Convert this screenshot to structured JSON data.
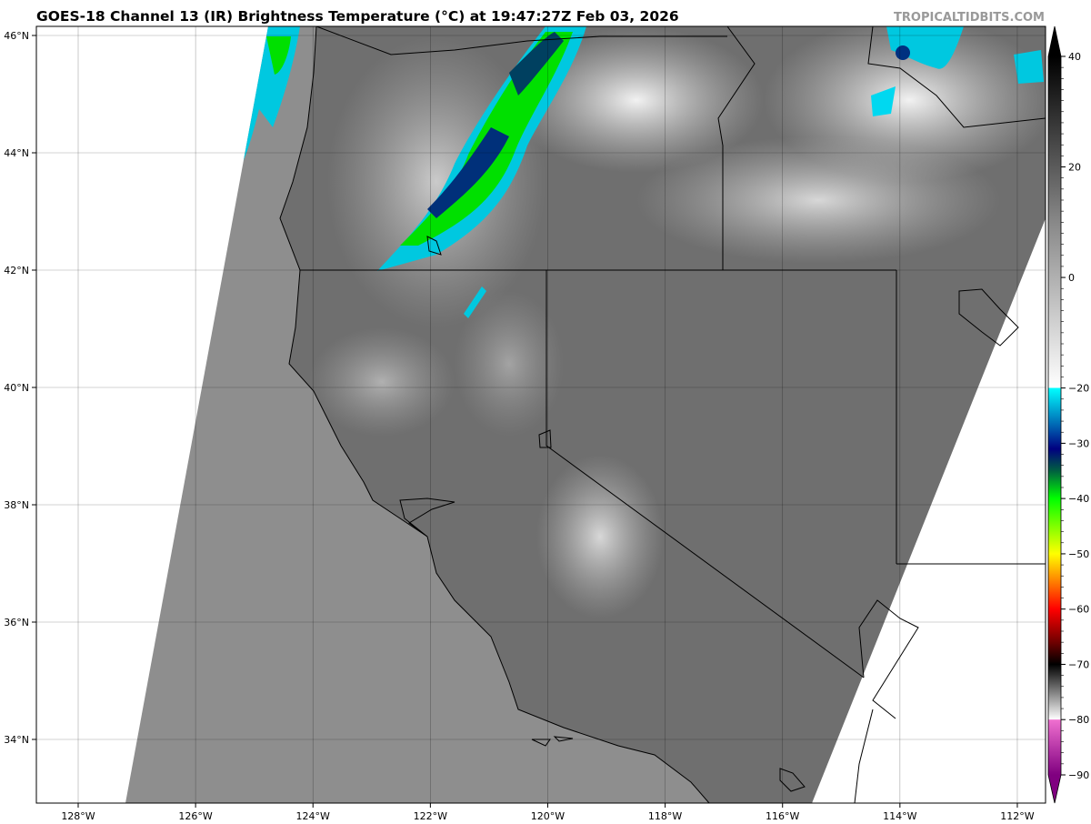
{
  "title": "GOES-18 Channel 13 (IR) Brightness Temperature (°C) at 19:47:27Z Feb 03, 2026",
  "brand": "TROPICALTIDBITS.COM",
  "map": {
    "projection": "equirectangular",
    "lon_range": [
      -128.7,
      -111.5
    ],
    "lat_range": [
      32.9,
      46.2
    ],
    "grid": true,
    "lon_ticks": [
      "128°W",
      "126°W",
      "124°W",
      "122°W",
      "120°W",
      "118°W",
      "116°W",
      "114°W",
      "112°W"
    ],
    "lon_values": [
      -128,
      -126,
      -124,
      -122,
      -120,
      -118,
      -116,
      -114,
      -112
    ],
    "lat_ticks": [
      "34°N",
      "36°N",
      "38°N",
      "40°N",
      "42°N",
      "44°N",
      "46°N"
    ],
    "lat_values": [
      34,
      36,
      38,
      40,
      42,
      44,
      46
    ],
    "colors": {
      "ocean": "#8e8e8e",
      "land": "#6f6f6f",
      "no_data": "#ffffff"
    }
  },
  "colorbar": {
    "range": [
      -90,
      40
    ],
    "ticks": [
      "40",
      "20",
      "0",
      "−20",
      "−30",
      "−40",
      "−50",
      "−60",
      "−70",
      "−80",
      "−90"
    ],
    "tick_values": [
      40,
      20,
      0,
      -20,
      -30,
      -40,
      -50,
      -60,
      -70,
      -80,
      -90
    ],
    "stops": [
      {
        "value": 40,
        "color": "#000000"
      },
      {
        "value": 10,
        "color": "#888888"
      },
      {
        "value": -20,
        "color": "#ffffff"
      },
      {
        "value": -20.01,
        "color": "#00ffff"
      },
      {
        "value": -27,
        "color": "#0060b0"
      },
      {
        "value": -31,
        "color": "#000080"
      },
      {
        "value": -35,
        "color": "#006040"
      },
      {
        "value": -40,
        "color": "#00ff00"
      },
      {
        "value": -50,
        "color": "#ffff00"
      },
      {
        "value": -55,
        "color": "#ff8000"
      },
      {
        "value": -60,
        "color": "#ff0000"
      },
      {
        "value": -66,
        "color": "#700000"
      },
      {
        "value": -70,
        "color": "#000000"
      },
      {
        "value": -80,
        "color": "#ffffff"
      },
      {
        "value": -80.01,
        "color": "#f070d0"
      },
      {
        "value": -90,
        "color": "#800080"
      }
    ]
  }
}
